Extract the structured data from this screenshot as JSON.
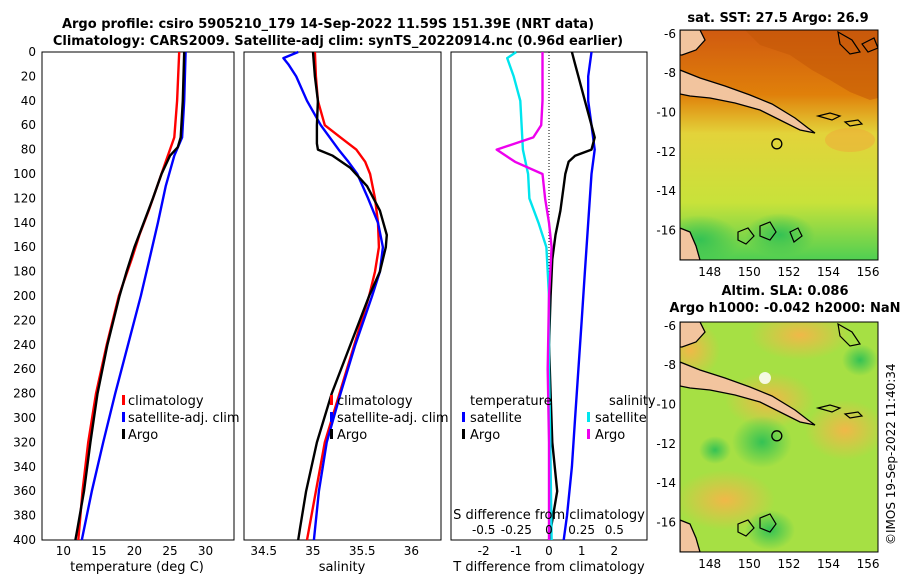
{
  "header": {
    "title_line1": "Argo profile: csiro 5905210_179 14-Sep-2022 11.59S 151.39E (NRT data)",
    "title_line2": "Climatology: CARS2009. Satellite-adj clim: synTS_20220914.nc (0.96d earlier)"
  },
  "colors": {
    "climatology": "#ff0000",
    "satellite": "#0000ff",
    "argo": "#000000",
    "sal_satellite": "#00e5ee",
    "sal_argo": "#ee00ee"
  },
  "depth_ticks": [
    "0",
    "20",
    "40",
    "60",
    "80",
    "100",
    "120",
    "140",
    "160",
    "180",
    "200",
    "220",
    "240",
    "260",
    "280",
    "300",
    "320",
    "340",
    "360",
    "380",
    "400"
  ],
  "chart_data": [
    {
      "type": "line",
      "panel": "temperature",
      "xlabel": "temperature (deg C)",
      "xlim": [
        7,
        34
      ],
      "ylim": [
        0,
        400
      ],
      "y_reversed": true,
      "xticks": [
        "10",
        "15",
        "20",
        "25",
        "30"
      ],
      "legend": [
        "climatology",
        "satellite-adj. clim",
        "Argo"
      ],
      "series": [
        {
          "name": "climatology",
          "depth": [
            0,
            40,
            70,
            90,
            110,
            130,
            150,
            170,
            200,
            240,
            280,
            320,
            360,
            400
          ],
          "values": [
            26.3,
            26.0,
            25.6,
            24.4,
            23.2,
            22.0,
            20.7,
            19.6,
            17.8,
            16.1,
            14.6,
            13.5,
            12.7,
            12.1
          ]
        },
        {
          "name": "satellite-adj. clim",
          "depth": [
            0,
            40,
            70,
            85,
            110,
            140,
            170,
            200,
            240,
            280,
            320,
            360,
            400
          ],
          "values": [
            27.2,
            27.0,
            26.7,
            25.6,
            24.4,
            23.3,
            22.1,
            20.9,
            19.1,
            17.3,
            15.6,
            14.0,
            12.6
          ]
        },
        {
          "name": "Argo",
          "depth": [
            0,
            40,
            70,
            78,
            85,
            100,
            120,
            140,
            160,
            180,
            200,
            240,
            280,
            320,
            360,
            390,
            400
          ],
          "values": [
            27.0,
            26.8,
            26.5,
            26.1,
            25.0,
            23.8,
            22.6,
            21.3,
            20.0,
            18.9,
            17.9,
            16.2,
            14.8,
            13.8,
            12.9,
            12.0,
            11.7
          ]
        }
      ]
    },
    {
      "type": "line",
      "panel": "salinity",
      "xlabel": "salinity",
      "xlim": [
        34.3,
        36.3
      ],
      "ylim": [
        0,
        400
      ],
      "y_reversed": true,
      "xticks": [
        "34.5",
        "35",
        "35.5",
        "36"
      ],
      "legend": [
        "climatology",
        "satellite-adj. clim",
        "Argo"
      ],
      "series": [
        {
          "name": "climatology",
          "depth": [
            0,
            20,
            40,
            60,
            70,
            80,
            90,
            100,
            120,
            140,
            160,
            180,
            200,
            240,
            280,
            320,
            360,
            400
          ],
          "values": [
            35.02,
            35.03,
            35.05,
            35.12,
            35.28,
            35.44,
            35.53,
            35.58,
            35.63,
            35.66,
            35.67,
            35.63,
            35.57,
            35.42,
            35.27,
            35.12,
            35.03,
            34.94
          ]
        },
        {
          "name": "satellite-adj. clim",
          "depth": [
            0,
            5,
            10,
            20,
            40,
            60,
            80,
            90,
            100,
            120,
            140,
            160,
            180,
            200,
            240,
            280,
            320,
            360,
            400
          ],
          "values": [
            34.85,
            34.7,
            34.75,
            34.83,
            34.94,
            35.08,
            35.26,
            35.36,
            35.45,
            35.56,
            35.66,
            35.71,
            35.68,
            35.6,
            35.43,
            35.28,
            35.14,
            35.06,
            35.01
          ]
        },
        {
          "name": "Argo",
          "depth": [
            0,
            20,
            40,
            60,
            75,
            80,
            85,
            95,
            110,
            130,
            150,
            160,
            180,
            200,
            240,
            280,
            320,
            360,
            390,
            400
          ],
          "values": [
            35.0,
            35.02,
            35.05,
            35.04,
            35.04,
            35.05,
            35.2,
            35.38,
            35.55,
            35.68,
            35.75,
            35.74,
            35.68,
            35.57,
            35.38,
            35.19,
            35.04,
            34.93,
            34.87,
            34.85
          ]
        }
      ]
    },
    {
      "type": "line",
      "panel": "difference from climatology",
      "xlabel": "T difference from climatology",
      "xlim": [
        -3,
        3
      ],
      "ylim": [
        0,
        400
      ],
      "y_reversed": true,
      "xticks": [
        "-2",
        "-1",
        "0",
        "1",
        "2"
      ],
      "secondary_xlabel": "S difference from climatology",
      "secondary_xticks": [
        "-0.5",
        "-0.25",
        "0",
        "0.25",
        "0.5"
      ],
      "legend": [
        "temperature",
        "satellite",
        "Argo",
        "salinity",
        "satellite",
        "Argo"
      ],
      "series": [
        {
          "name": "temperature satellite",
          "depth": [
            0,
            20,
            40,
            60,
            80,
            100,
            140,
            180,
            220,
            260,
            300,
            340,
            380,
            400
          ],
          "values": [
            1.3,
            1.2,
            1.2,
            1.3,
            1.4,
            1.3,
            1.2,
            1.1,
            1.0,
            0.9,
            0.8,
            0.7,
            0.55,
            0.45
          ]
        },
        {
          "name": "temperature Argo",
          "depth": [
            0,
            10,
            20,
            40,
            60,
            70,
            80,
            85,
            90,
            100,
            110,
            130,
            150,
            170,
            200,
            240,
            280,
            320,
            360,
            400
          ],
          "values": [
            0.7,
            0.8,
            0.9,
            1.1,
            1.3,
            1.4,
            1.3,
            0.8,
            0.6,
            0.5,
            0.45,
            0.35,
            0.2,
            0.1,
            0.05,
            0.0,
            0.05,
            0.1,
            0.25,
            0.0
          ]
        },
        {
          "name": "salinity satellite",
          "depth": [
            0,
            5,
            20,
            40,
            60,
            80,
            100,
            120,
            140,
            160,
            200,
            260,
            320,
            400
          ],
          "values": [
            -0.25,
            -0.32,
            -0.27,
            -0.22,
            -0.21,
            -0.2,
            -0.16,
            -0.15,
            -0.08,
            -0.02,
            0.0,
            0.0,
            0.01,
            0.02
          ]
        },
        {
          "name": "salinity Argo",
          "depth": [
            0,
            20,
            40,
            60,
            70,
            80,
            90,
            100,
            120,
            140,
            160,
            200,
            260,
            320,
            400
          ],
          "values": [
            -0.05,
            -0.05,
            -0.05,
            -0.06,
            -0.12,
            -0.4,
            -0.26,
            -0.05,
            -0.03,
            0.0,
            0.02,
            0.0,
            -0.01,
            0.0,
            0.0
          ]
        }
      ]
    },
    {
      "type": "heatmap",
      "panel": "map-sst",
      "title": "sat. SST: 27.5 Argo: 26.9",
      "xlim": [
        146.5,
        156.5
      ],
      "ylim": [
        -17.5,
        -5.8
      ],
      "xticks": [
        "148",
        "150",
        "152",
        "154",
        "156"
      ],
      "yticks": [
        "-6",
        "-8",
        "-10",
        "-12",
        "-14",
        "-16"
      ],
      "profile_location": {
        "lon": 151.39,
        "lat": -11.59
      }
    },
    {
      "type": "heatmap",
      "panel": "map-sla",
      "title_line1": "Altim. SLA: 0.086",
      "title_line2": "Argo h1000: -0.042 h2000: NaN",
      "xlim": [
        146.5,
        156.5
      ],
      "ylim": [
        -17.5,
        -5.8
      ],
      "xticks": [
        "148",
        "150",
        "152",
        "154",
        "156"
      ],
      "yticks": [
        "-6",
        "-8",
        "-10",
        "-12",
        "-14",
        "-16"
      ],
      "profile_location": {
        "lon": 151.39,
        "lat": -11.59
      }
    }
  ],
  "credit": "©IMOS 19-Sep-2022 11:40:34"
}
